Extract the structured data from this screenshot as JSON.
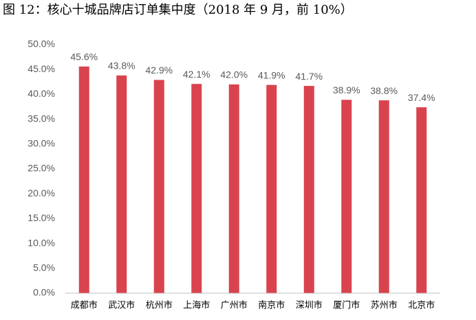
{
  "chart_data": {
    "type": "bar",
    "title": "图 12：核心十城品牌店订单集中度（2018 年 9 月，前 10%）",
    "categories": [
      "成都市",
      "武汉市",
      "杭州市",
      "上海市",
      "广州市",
      "南京市",
      "深圳市",
      "厦门市",
      "苏州市",
      "北京市"
    ],
    "values": [
      45.6,
      43.8,
      42.9,
      42.1,
      42.0,
      41.9,
      41.7,
      38.9,
      38.8,
      37.4
    ],
    "value_labels": [
      "45.6%",
      "43.8%",
      "42.9%",
      "42.1%",
      "42.0%",
      "41.9%",
      "41.7%",
      "38.9%",
      "38.8%",
      "37.4%"
    ],
    "color": "#d9434e",
    "ylim": [
      0,
      50
    ],
    "yticks": [
      {
        "value": 0,
        "label": "0.0%"
      },
      {
        "value": 5,
        "label": "5.0%"
      },
      {
        "value": 10,
        "label": "10.0%"
      },
      {
        "value": 15,
        "label": "15.0%"
      },
      {
        "value": 20,
        "label": "20.0%"
      },
      {
        "value": 25,
        "label": "25.0%"
      },
      {
        "value": 30,
        "label": "30.0%"
      },
      {
        "value": 35,
        "label": "35.0%"
      },
      {
        "value": 40,
        "label": "40.0%"
      },
      {
        "value": 45,
        "label": "45.0%"
      },
      {
        "value": 50,
        "label": "50.0%"
      }
    ],
    "grid": false
  }
}
